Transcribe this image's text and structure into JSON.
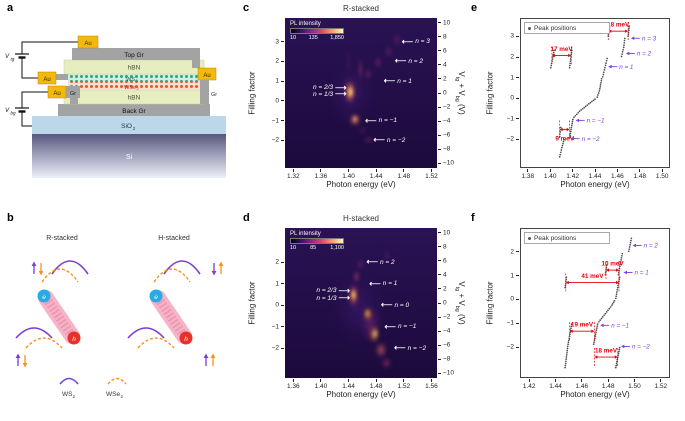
{
  "colors": {
    "measurement_red": "#e8000b",
    "state_purple": "#8040d8",
    "points_gray": "#4a4a4a",
    "arrow_white": "#ffffff",
    "heat_bg": "#241048",
    "au": "#f3b90c",
    "graphene_gray": "#a3a3a3",
    "hbn": "#e6edbf",
    "ws2": "#2fa483",
    "wse2": "#e2572b",
    "sio2": "#bcd7ea",
    "electron_blue": "#29abe2",
    "hole_red": "#e8312a",
    "exciton_pink": "#f6aec3"
  },
  "axis_labels": {
    "filling": "Filling factor",
    "photon": "Photon energy (eV)",
    "gate": [
      [
        "V",
        0
      ],
      [
        "tg",
        1
      ],
      [
        " + V",
        0
      ],
      [
        "bg",
        1
      ],
      [
        " (V)",
        0
      ]
    ]
  },
  "panels": {
    "a": {
      "letter": "a",
      "labels": {
        "au": "Au",
        "top_gr": "Top Gr",
        "hbn": "hBN",
        "ws2_base": "WS",
        "ws2_sub": "2",
        "wse2_base": "WSe",
        "wse2_sub": "2",
        "back_gr": "Back Gr",
        "sio2_base": "SiO",
        "sio2_sub": "2",
        "si": "Si",
        "gr": "Gr",
        "v_base": "V",
        "vtg_sub": "tg",
        "vbg_sub": "bg"
      }
    },
    "b": {
      "letter": "b",
      "r_title": "R-stacked",
      "h_title": "H-stacked",
      "electron": "e",
      "hole": "h",
      "ws2_base": "WS",
      "ws2_sub": "2",
      "wse2_base": "WSe",
      "wse2_sub": "2"
    },
    "c": {
      "letter": "c"
    },
    "d": {
      "letter": "d"
    },
    "e": {
      "letter": "e"
    },
    "f": {
      "letter": "f"
    }
  },
  "chart_data": [
    {
      "panel": "c",
      "type": "heatmap",
      "title": "R-stacked",
      "xlabel": "Photon energy (eV)",
      "ylabel": "Filling factor",
      "ylabel_right": "Vtg + Vbg (V)",
      "x_range": [
        1.308,
        1.528
      ],
      "x_ticks": [
        1.32,
        1.36,
        1.4,
        1.44,
        1.48,
        1.52
      ],
      "y_range": [
        -3.4,
        4.2
      ],
      "y_ticks": [
        3,
        2,
        1,
        0,
        -1,
        -2
      ],
      "v_range": [
        -10.7,
        10.7
      ],
      "v_ticks": [
        10,
        8,
        6,
        4,
        2,
        0,
        -2,
        -4,
        -6,
        -8,
        -10
      ],
      "colorbar": {
        "label": "PL intensity",
        "ticks": [
          "10",
          "135",
          "1,850"
        ]
      },
      "annotations": [
        {
          "text": "n = 3",
          "x": 1.477,
          "y": 3.0,
          "side": "right"
        },
        {
          "text": "n = 2",
          "x": 1.467,
          "y": 2.0,
          "side": "right"
        },
        {
          "text": "n = 1",
          "x": 1.451,
          "y": 1.0,
          "side": "right"
        },
        {
          "text": "n = 2/3",
          "x": 1.397,
          "y": 0.67,
          "side": "left"
        },
        {
          "text": "n = 1/3",
          "x": 1.397,
          "y": 0.33,
          "side": "left"
        },
        {
          "text": "n = −1",
          "x": 1.424,
          "y": -1.0,
          "side": "right"
        },
        {
          "text": "n = −2",
          "x": 1.436,
          "y": -2.0,
          "side": "right"
        }
      ],
      "features": [
        {
          "x": 1.403,
          "y": 0.3,
          "rx": 0.05,
          "ry": 2.2,
          "c": "#45207a",
          "a": 0.45
        },
        {
          "x": 1.402,
          "y": 0.5,
          "rx": 0.016,
          "ry": 1.0,
          "c": "#b5367a",
          "a": 0.65
        },
        {
          "x": 1.402,
          "y": 0.45,
          "rx": 0.01,
          "ry": 0.75,
          "c": "#fb9b06",
          "a": 0.9
        },
        {
          "x": 1.4025,
          "y": 0.45,
          "rx": 0.005,
          "ry": 0.45,
          "c": "#fffdd0",
          "a": 1
        },
        {
          "x": 1.41,
          "y": -0.95,
          "rx": 0.013,
          "ry": 0.5,
          "c": "#e16462",
          "a": 0.75
        },
        {
          "x": 1.409,
          "y": -0.9,
          "rx": 0.006,
          "ry": 0.3,
          "c": "#fcce5e",
          "a": 0.95
        },
        {
          "x": 1.417,
          "y": 1.6,
          "rx": 0.005,
          "ry": 0.9,
          "c": "#c4437e",
          "a": 0.5
        },
        {
          "x": 1.428,
          "y": 1.35,
          "rx": 0.009,
          "ry": 0.4,
          "c": "#9a2d7f",
          "a": 0.55
        },
        {
          "x": 1.443,
          "y": 1.95,
          "rx": 0.009,
          "ry": 0.45,
          "c": "#9a2d7f",
          "a": 0.55
        },
        {
          "x": 1.458,
          "y": 2.5,
          "rx": 0.009,
          "ry": 0.45,
          "c": "#8a2a78",
          "a": 0.5
        },
        {
          "x": 1.47,
          "y": 3.1,
          "rx": 0.009,
          "ry": 0.5,
          "c": "#8a2a78",
          "a": 0.5
        },
        {
          "x": 1.429,
          "y": -2.0,
          "rx": 0.012,
          "ry": 0.3,
          "c": "#8a2a78",
          "a": 0.55
        },
        {
          "x": 1.42,
          "y": -1.5,
          "rx": 0.008,
          "ry": 0.4,
          "c": "#6a2170",
          "a": 0.5
        },
        {
          "x": 1.4,
          "y": 2.0,
          "rx": 0.004,
          "ry": 1.0,
          "c": "#7a2878",
          "a": 0.45
        }
      ]
    },
    {
      "panel": "d",
      "type": "heatmap",
      "title": "H-stacked",
      "xlabel": "Photon energy (eV)",
      "ylabel": "Filling factor",
      "ylabel_right": "Vtg + Vbg (V)",
      "x_range": [
        1.348,
        1.568
      ],
      "x_ticks": [
        1.36,
        1.4,
        1.44,
        1.48,
        1.52,
        1.56
      ],
      "y_range": [
        -3.4,
        3.6
      ],
      "y_ticks": [
        2,
        1,
        0,
        -1,
        -2
      ],
      "v_range": [
        -10.7,
        10.7
      ],
      "v_ticks": [
        10,
        8,
        6,
        4,
        2,
        0,
        -2,
        -4,
        -6,
        -8,
        -10
      ],
      "colorbar": {
        "label": "PL intensity",
        "ticks": [
          "10",
          "85",
          "1,100"
        ]
      },
      "annotations": [
        {
          "text": "n = 2",
          "x": 1.466,
          "y": 2.0,
          "side": "right"
        },
        {
          "text": "n = 1",
          "x": 1.47,
          "y": 1.0,
          "side": "right"
        },
        {
          "text": "n = 0",
          "x": 1.487,
          "y": 0.0,
          "side": "right"
        },
        {
          "text": "n = 2/3",
          "x": 1.442,
          "y": 0.67,
          "side": "left"
        },
        {
          "text": "n = 1/3",
          "x": 1.442,
          "y": 0.33,
          "side": "left"
        },
        {
          "text": "n = −1",
          "x": 1.492,
          "y": -1.0,
          "side": "right"
        },
        {
          "text": "n = −2",
          "x": 1.506,
          "y": -2.0,
          "side": "right"
        }
      ],
      "features": [
        {
          "x": 1.455,
          "y": -0.2,
          "rx": 0.055,
          "ry": 2.4,
          "c": "#45207a",
          "a": 0.45
        },
        {
          "x": 1.447,
          "y": 0.45,
          "rx": 0.014,
          "ry": 0.9,
          "c": "#b5367a",
          "a": 0.65
        },
        {
          "x": 1.447,
          "y": 0.45,
          "rx": 0.008,
          "ry": 0.6,
          "c": "#fb9b06",
          "a": 0.9
        },
        {
          "x": 1.447,
          "y": 0.5,
          "rx": 0.004,
          "ry": 0.4,
          "c": "#fffdd0",
          "a": 1
        },
        {
          "x": 1.452,
          "y": 1.35,
          "rx": 0.008,
          "ry": 0.45,
          "c": "#c4437e",
          "a": 0.6
        },
        {
          "x": 1.457,
          "y": 1.9,
          "rx": 0.008,
          "ry": 0.35,
          "c": "#9a2d7f",
          "a": 0.5
        },
        {
          "x": 1.468,
          "y": -0.45,
          "rx": 0.01,
          "ry": 0.5,
          "c": "#fb9b06",
          "a": 0.8
        },
        {
          "x": 1.468,
          "y": -0.4,
          "rx": 0.005,
          "ry": 0.3,
          "c": "#fcce5e",
          "a": 0.95
        },
        {
          "x": 1.477,
          "y": -1.35,
          "rx": 0.012,
          "ry": 0.6,
          "c": "#fb9b06",
          "a": 0.8
        },
        {
          "x": 1.478,
          "y": -1.3,
          "rx": 0.006,
          "ry": 0.35,
          "c": "#fffdd0",
          "a": 0.85
        },
        {
          "x": 1.487,
          "y": -2.1,
          "rx": 0.013,
          "ry": 0.55,
          "c": "#e16462",
          "a": 0.7
        },
        {
          "x": 1.495,
          "y": -2.7,
          "rx": 0.011,
          "ry": 0.4,
          "c": "#b5367a",
          "a": 0.6
        },
        {
          "x": 1.472,
          "y": -0.9,
          "rx": 0.022,
          "ry": 1.3,
          "c": "#8a2a78",
          "a": 0.5
        },
        {
          "x": 1.496,
          "y": 2.3,
          "rx": 0.007,
          "ry": 0.4,
          "c": "#7a2878",
          "a": 0.45
        }
      ]
    },
    {
      "panel": "e",
      "type": "scatter",
      "legend": "Peak positions",
      "xlabel": "Photon energy (eV)",
      "ylabel": "Filling factor",
      "x_range": [
        1.373,
        1.507
      ],
      "x_ticks": [
        1.38,
        1.4,
        1.42,
        1.44,
        1.46,
        1.48,
        1.5
      ],
      "y_range": [
        -3.4,
        3.9
      ],
      "y_ticks": [
        3,
        2,
        1,
        0,
        -1,
        -2
      ],
      "branches": [
        [
          [
            1.408,
            -2.9
          ],
          [
            1.41,
            -2.45
          ],
          [
            1.412,
            -2.05
          ]
        ],
        [
          [
            1.408,
            -1.9
          ],
          [
            1.409,
            -1.45
          ]
        ],
        [
          [
            1.417,
            -1.95
          ],
          [
            1.419,
            -1.35
          ],
          [
            1.42,
            -1.05
          ]
        ],
        [
          [
            1.421,
            -0.95
          ],
          [
            1.426,
            -0.65
          ],
          [
            1.433,
            -0.35
          ],
          [
            1.44,
            -0.05
          ]
        ],
        [
          [
            1.442,
            0.05
          ],
          [
            1.444,
            0.35
          ],
          [
            1.446,
            0.95
          ]
        ],
        [
          [
            1.447,
            1.05
          ],
          [
            1.449,
            1.5
          ],
          [
            1.451,
            1.95
          ]
        ],
        [
          [
            1.4,
            1.5
          ],
          [
            1.403,
            2.35
          ]
        ],
        [
          [
            1.417,
            1.5
          ],
          [
            1.419,
            2.35
          ]
        ],
        [
          [
            1.464,
            2.05
          ],
          [
            1.466,
            2.5
          ],
          [
            1.467,
            2.95
          ]
        ],
        [
          [
            1.47,
            3.05
          ],
          [
            1.471,
            3.55
          ]
        ],
        [
          [
            1.452,
            3.05
          ],
          [
            1.453,
            3.45
          ]
        ]
      ],
      "measurements": [
        {
          "label": "18 meV",
          "x1": 1.452,
          "x2": 1.47,
          "y": 3.3,
          "label_pos": "above"
        },
        {
          "label": "17 meV",
          "x1": 1.401,
          "x2": 1.4185,
          "y": 2.1,
          "label_pos": "above"
        },
        {
          "label": "9 meV",
          "x1": 1.408,
          "x2": 1.417,
          "y": -1.55,
          "label_pos": "below"
        }
      ],
      "state_labels": [
        {
          "label": "n = 3",
          "tip_x": 1.4725,
          "y": 2.95
        },
        {
          "label": "n = 2",
          "tip_x": 1.468,
          "y": 2.2
        },
        {
          "label": "n = 1",
          "tip_x": 1.452,
          "y": 1.55
        },
        {
          "label": "n = −1",
          "tip_x": 1.4225,
          "y": -1.1
        },
        {
          "label": "n = −2",
          "tip_x": 1.418,
          "y": -2.0
        }
      ]
    },
    {
      "panel": "f",
      "type": "scatter",
      "legend": "Peak positions",
      "xlabel": "Photon energy (eV)",
      "ylabel": "Filling factor",
      "x_range": [
        1.413,
        1.527
      ],
      "x_ticks": [
        1.42,
        1.44,
        1.46,
        1.48,
        1.5,
        1.52
      ],
      "y_range": [
        -3.3,
        3.0
      ],
      "y_ticks": [
        2,
        1,
        0,
        -1,
        -2
      ],
      "branches": [
        [
          [
            1.447,
            -2.9
          ],
          [
            1.449,
            -2.0
          ],
          [
            1.452,
            -1.05
          ]
        ],
        [
          [
            1.469,
            -1.9
          ],
          [
            1.472,
            -1.05
          ]
        ],
        [
          [
            1.486,
            -2.9
          ],
          [
            1.489,
            -2.05
          ]
        ],
        [
          [
            1.473,
            -0.95
          ],
          [
            1.478,
            -0.6
          ],
          [
            1.483,
            -0.25
          ],
          [
            1.485,
            -0.05
          ]
        ],
        [
          [
            1.486,
            0.05
          ],
          [
            1.489,
            0.95
          ]
        ],
        [
          [
            1.447,
            0.5
          ],
          [
            1.448,
            0.95
          ]
        ],
        [
          [
            1.488,
            1.05
          ],
          [
            1.491,
            1.95
          ]
        ],
        [
          [
            1.478,
            1.05
          ],
          [
            1.479,
            1.45
          ]
        ],
        [
          [
            1.496,
            2.05
          ],
          [
            1.498,
            2.6
          ]
        ]
      ],
      "measurements": [
        {
          "label": "10 meV",
          "x1": 1.4785,
          "x2": 1.4885,
          "y": 1.25,
          "label_pos": "above"
        },
        {
          "label": "41 meV",
          "x1": 1.4475,
          "x2": 1.4885,
          "y": 0.72,
          "label_pos": "above"
        },
        {
          "label": "19 meV",
          "x1": 1.4505,
          "x2": 1.4695,
          "y": -1.35,
          "label_pos": "above"
        },
        {
          "label": "18 meV",
          "x1": 1.4695,
          "x2": 1.4875,
          "y": -2.45,
          "label_pos": "above"
        }
      ],
      "state_labels": [
        {
          "label": "n = 2",
          "tip_x": 1.499,
          "y": 2.3
        },
        {
          "label": "n = 1",
          "tip_x": 1.492,
          "y": 1.15
        },
        {
          "label": "n = −1",
          "tip_x": 1.474,
          "y": -1.1
        },
        {
          "label": "n = −2",
          "tip_x": 1.49,
          "y": -2.0
        }
      ]
    }
  ]
}
